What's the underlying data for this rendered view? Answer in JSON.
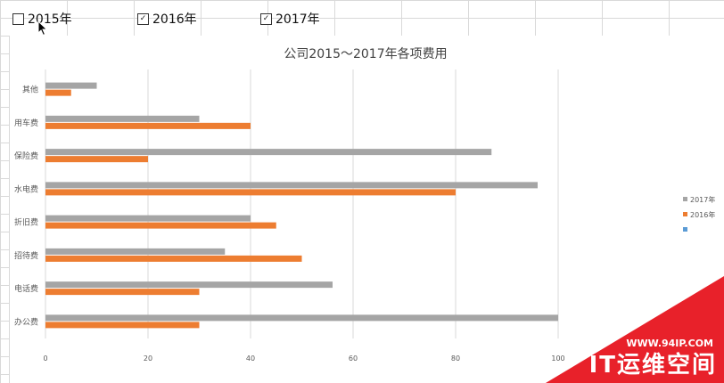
{
  "checkboxes": [
    {
      "label": "2015年",
      "checked": false
    },
    {
      "label": "2016年",
      "checked": true
    },
    {
      "label": "2017年",
      "checked": true
    }
  ],
  "chart_data": {
    "type": "bar",
    "orientation": "horizontal",
    "title": "公司2015～2017年各项费用",
    "categories": [
      "其他",
      "用车费",
      "保险费",
      "水电费",
      "折旧费",
      "招待费",
      "电话费",
      "办公费"
    ],
    "series": [
      {
        "name": "2017年",
        "color": "#a5a5a5",
        "values": [
          10,
          30,
          87,
          96,
          40,
          35,
          56,
          100
        ]
      },
      {
        "name": "2016年",
        "color": "#ed7d31",
        "values": [
          5,
          40,
          20,
          80,
          45,
          50,
          30,
          30
        ]
      },
      {
        "name": "",
        "color": "#5b9bd5",
        "values": [
          0,
          0,
          0,
          0,
          0,
          0,
          0,
          0
        ]
      }
    ],
    "xlim": [
      0,
      100
    ],
    "xticks": [
      "0",
      "20",
      "40",
      "60",
      "80",
      "100"
    ],
    "grid": true,
    "legend": "right"
  },
  "watermark": {
    "url": "WWW.94IP.COM",
    "brand": "IT运维空间",
    "color": "#e8212a"
  }
}
